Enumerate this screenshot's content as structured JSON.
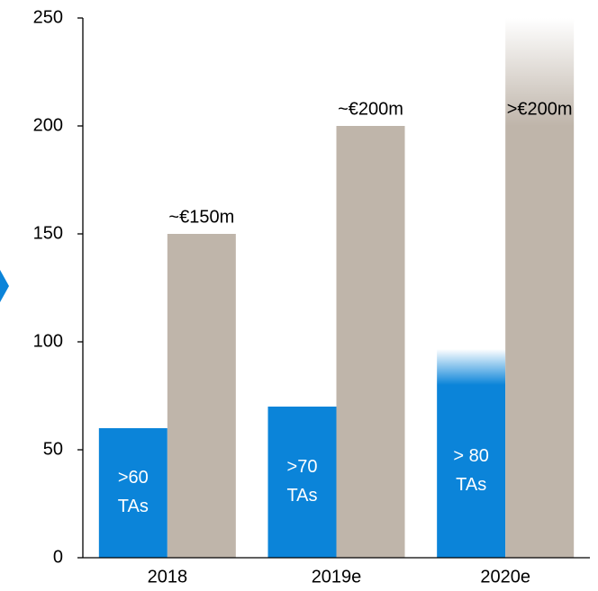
{
  "chart_data": {
    "type": "bar",
    "categories": [
      "2018",
      "2019e",
      "2020e"
    ],
    "series": [
      {
        "color": "#0b84d9",
        "values": [
          60,
          70,
          80
        ],
        "value_labels": [
          ">60\nTAs",
          ">70\nTAs",
          "> 80\nTAs"
        ],
        "faded": [
          false,
          false,
          true
        ]
      },
      {
        "color": "#bfb5aa",
        "values": [
          150,
          200,
          200
        ],
        "value_labels": [
          "~€150m",
          "~€200m",
          ">€200m"
        ],
        "faded": [
          false,
          false,
          true
        ]
      }
    ],
    "ylim": [
      0,
      250
    ],
    "yticks": [
      0,
      50,
      100,
      150,
      200,
      250
    ],
    "grid": false
  }
}
